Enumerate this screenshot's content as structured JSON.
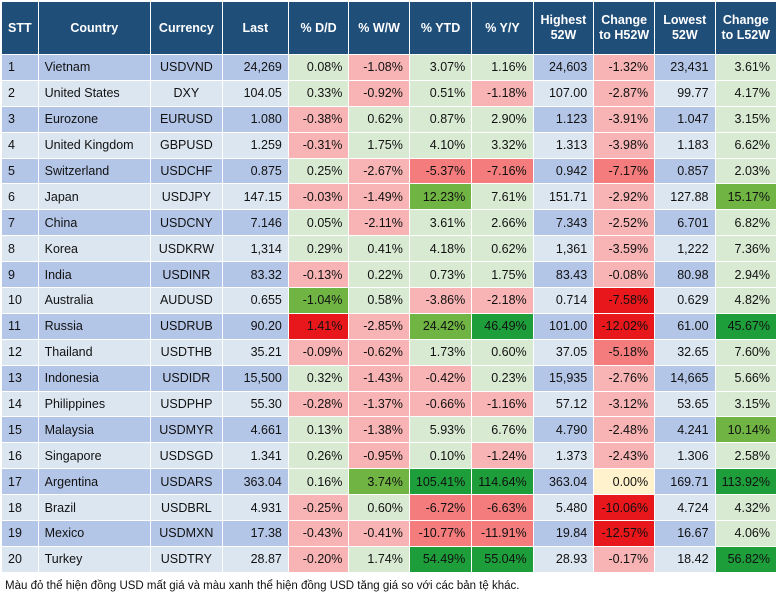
{
  "headers": [
    "STT",
    "Country",
    "Currency",
    "Last",
    "% D/D",
    "% W/W",
    "% YTD",
    "% Y/Y",
    "Highest 52W",
    "Change to H52W",
    "Lowest 52W",
    "Change to L52W"
  ],
  "colors": {
    "header_bg": "#1f4e79",
    "row_odd": "#b4c6e7",
    "row_even": "#dce6f1",
    "red_light": "#f8b4b4",
    "red_mid": "#f47c7c",
    "red_strong": "#e8171b",
    "green_light": "#d9ead3",
    "green_mid": "#a9d08e",
    "green_strong": "#70b444",
    "green_dark": "#1e9e3a",
    "neutral_light": "#fff2cc"
  },
  "rows": [
    {
      "stt": "1",
      "country": "Vietnam",
      "currency": "USDVND",
      "last": "24,269",
      "dd": "0.08%",
      "ww": "-1.08%",
      "ytd": "3.07%",
      "yy": "1.16%",
      "h52": "24,603",
      "ch52": "-1.32%",
      "l52": "23,431",
      "cl52": "3.61%"
    },
    {
      "stt": "2",
      "country": "United States",
      "currency": "DXY",
      "last": "104.05",
      "dd": "0.33%",
      "ww": "-0.92%",
      "ytd": "0.51%",
      "yy": "-1.18%",
      "h52": "107.00",
      "ch52": "-2.87%",
      "l52": "99.77",
      "cl52": "4.17%"
    },
    {
      "stt": "3",
      "country": "Eurozone",
      "currency": "EURUSD",
      "last": "1.080",
      "dd": "-0.38%",
      "ww": "0.62%",
      "ytd": "0.87%",
      "yy": "2.90%",
      "h52": "1.123",
      "ch52": "-3.91%",
      "l52": "1.047",
      "cl52": "3.15%"
    },
    {
      "stt": "4",
      "country": "United Kingdom",
      "currency": "GBPUSD",
      "last": "1.259",
      "dd": "-0.31%",
      "ww": "1.75%",
      "ytd": "4.10%",
      "yy": "3.32%",
      "h52": "1.313",
      "ch52": "-3.98%",
      "l52": "1.183",
      "cl52": "6.62%"
    },
    {
      "stt": "5",
      "country": "Switzerland",
      "currency": "USDCHF",
      "last": "0.875",
      "dd": "0.25%",
      "ww": "-2.67%",
      "ytd": "-5.37%",
      "yy": "-7.16%",
      "h52": "0.942",
      "ch52": "-7.17%",
      "l52": "0.857",
      "cl52": "2.03%"
    },
    {
      "stt": "6",
      "country": "Japan",
      "currency": "USDJPY",
      "last": "147.15",
      "dd": "-0.03%",
      "ww": "-1.49%",
      "ytd": "12.23%",
      "yy": "7.61%",
      "h52": "151.71",
      "ch52": "-2.92%",
      "l52": "127.88",
      "cl52": "15.17%"
    },
    {
      "stt": "7",
      "country": "China",
      "currency": "USDCNY",
      "last": "7.146",
      "dd": "0.05%",
      "ww": "-2.11%",
      "ytd": "3.61%",
      "yy": "2.66%",
      "h52": "7.343",
      "ch52": "-2.52%",
      "l52": "6.701",
      "cl52": "6.82%"
    },
    {
      "stt": "8",
      "country": "Korea",
      "currency": "USDKRW",
      "last": "1,314",
      "dd": "0.29%",
      "ww": "0.41%",
      "ytd": "4.18%",
      "yy": "0.62%",
      "h52": "1,361",
      "ch52": "-3.59%",
      "l52": "1,222",
      "cl52": "7.36%"
    },
    {
      "stt": "9",
      "country": "India",
      "currency": "USDINR",
      "last": "83.32",
      "dd": "-0.13%",
      "ww": "0.22%",
      "ytd": "0.73%",
      "yy": "1.75%",
      "h52": "83.43",
      "ch52": "-0.08%",
      "l52": "80.98",
      "cl52": "2.94%"
    },
    {
      "stt": "10",
      "country": "Australia",
      "currency": "AUDUSD",
      "last": "0.655",
      "dd": "-1.04%",
      "ww": "0.58%",
      "ytd": "-3.86%",
      "yy": "-2.18%",
      "h52": "0.714",
      "ch52": "-7.58%",
      "l52": "0.629",
      "cl52": "4.82%"
    },
    {
      "stt": "11",
      "country": "Russia",
      "currency": "USDRUB",
      "last": "90.20",
      "dd": "1.41%",
      "ww": "-2.85%",
      "ytd": "24.42%",
      "yy": "46.49%",
      "h52": "101.00",
      "ch52": "-12.02%",
      "l52": "61.00",
      "cl52": "45.67%"
    },
    {
      "stt": "12",
      "country": "Thailand",
      "currency": "USDTHB",
      "last": "35.21",
      "dd": "-0.09%",
      "ww": "-0.62%",
      "ytd": "1.73%",
      "yy": "0.60%",
      "h52": "37.05",
      "ch52": "-5.18%",
      "l52": "32.65",
      "cl52": "7.60%"
    },
    {
      "stt": "13",
      "country": "Indonesia",
      "currency": "USDIDR",
      "last": "15,500",
      "dd": "0.32%",
      "ww": "-1.43%",
      "ytd": "-0.42%",
      "yy": "0.23%",
      "h52": "15,935",
      "ch52": "-2.76%",
      "l52": "14,665",
      "cl52": "5.66%"
    },
    {
      "stt": "14",
      "country": "Philippines",
      "currency": "USDPHP",
      "last": "55.30",
      "dd": "-0.28%",
      "ww": "-1.37%",
      "ytd": "-0.66%",
      "yy": "-1.16%",
      "h52": "57.12",
      "ch52": "-3.12%",
      "l52": "53.65",
      "cl52": "3.15%"
    },
    {
      "stt": "15",
      "country": "Malaysia",
      "currency": "USDMYR",
      "last": "4.661",
      "dd": "0.13%",
      "ww": "-1.38%",
      "ytd": "5.93%",
      "yy": "6.76%",
      "h52": "4.790",
      "ch52": "-2.48%",
      "l52": "4.241",
      "cl52": "10.14%"
    },
    {
      "stt": "16",
      "country": "Singapore",
      "currency": "USDSGD",
      "last": "1.341",
      "dd": "0.26%",
      "ww": "-0.95%",
      "ytd": "0.10%",
      "yy": "-1.24%",
      "h52": "1.373",
      "ch52": "-2.43%",
      "l52": "1.306",
      "cl52": "2.58%"
    },
    {
      "stt": "17",
      "country": "Argentina",
      "currency": "USDARS",
      "last": "363.04",
      "dd": "0.16%",
      "ww": "3.74%",
      "ytd": "105.41%",
      "yy": "114.64%",
      "h52": "363.04",
      "ch52": "0.00%",
      "l52": "169.71",
      "cl52": "113.92%"
    },
    {
      "stt": "18",
      "country": "Brazil",
      "currency": "USDBRL",
      "last": "4.931",
      "dd": "-0.25%",
      "ww": "0.60%",
      "ytd": "-6.72%",
      "yy": "-6.63%",
      "h52": "5.480",
      "ch52": "-10.06%",
      "l52": "4.724",
      "cl52": "4.32%"
    },
    {
      "stt": "19",
      "country": "Mexico",
      "currency": "USDMXN",
      "last": "17.38",
      "dd": "-0.43%",
      "ww": "-0.41%",
      "ytd": "-10.77%",
      "yy": "-11.91%",
      "h52": "19.84",
      "ch52": "-12.57%",
      "l52": "16.67",
      "cl52": "4.06%"
    },
    {
      "stt": "20",
      "country": "Turkey",
      "currency": "USDTRY",
      "last": "28.87",
      "dd": "-0.20%",
      "ww": "1.74%",
      "ytd": "54.49%",
      "yy": "55.04%",
      "h52": "28.93",
      "ch52": "-0.17%",
      "l52": "18.42",
      "cl52": "56.82%"
    }
  ],
  "footnote": "Màu đỏ thể hiện đồng USD mất giá và màu xanh thể hiện đồng USD tăng giá so với các bản tệ khác."
}
